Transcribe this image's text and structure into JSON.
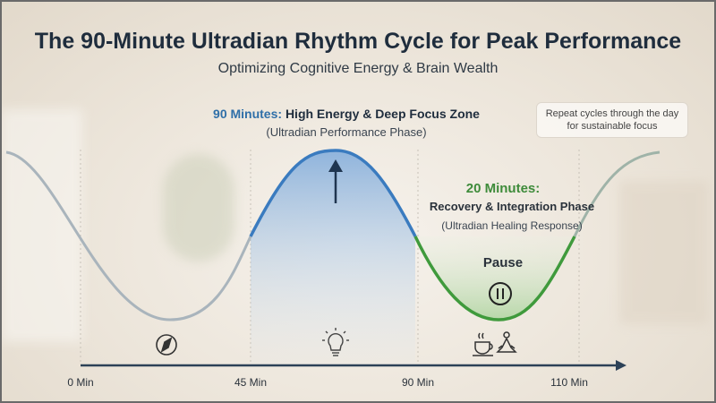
{
  "title": "The 90-Minute Ultradian Rhythm Cycle for Peak Performance",
  "subtitle": "Optimizing Cognitive Energy & Brain Wealth",
  "high_phase": {
    "duration": "90 Minutes:",
    "label": "High Energy & Deep Focus Zone",
    "sublabel": "(Ultradian Performance Phase)"
  },
  "recovery_phase": {
    "duration": "20 Minutes:",
    "label": "Recovery & Integration Phase",
    "sublabel": "(Ultradian Healing Response)",
    "pause_label": "Pause"
  },
  "note": "Repeat cycles through the day for sustainable focus",
  "axis_ticks": [
    "0 Min",
    "45 Min",
    "90 Min",
    "110 Min"
  ],
  "icons": [
    "compass-icon",
    "lightbulb-icon",
    "coffee-cup-icon",
    "meditation-icon",
    "pause-icon",
    "up-arrow-icon"
  ],
  "colors": {
    "high": "#3a7bbf",
    "recovery": "#3f9a3c",
    "baseline": "#a9b4bc",
    "axis": "#2c4157"
  }
}
